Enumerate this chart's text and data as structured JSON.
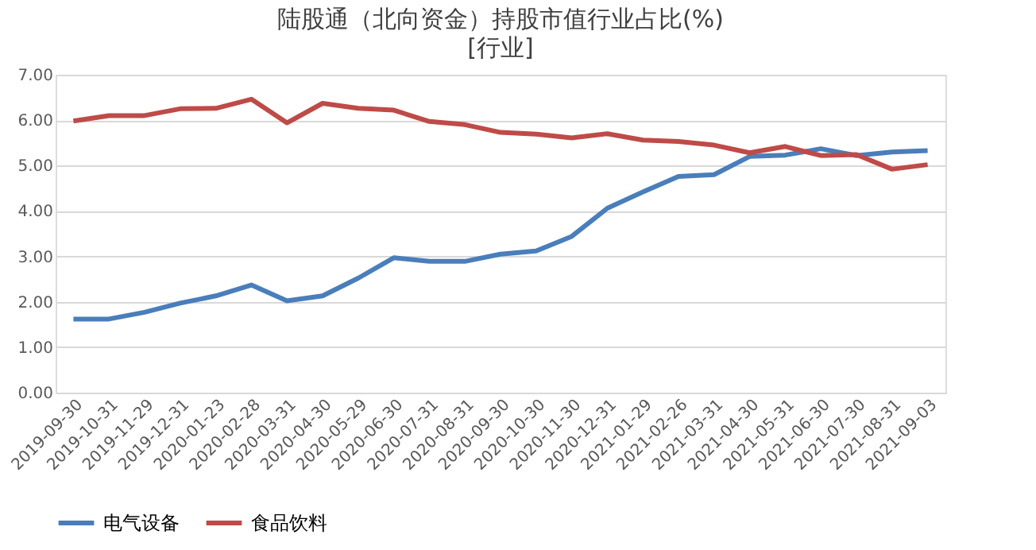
{
  "chart_data": {
    "type": "line",
    "title": "陆股通（北向资金）持股市值行业占比(%)",
    "subtitle": "[行业]",
    "categories": [
      "2019-09-30",
      "2019-10-31",
      "2019-11-29",
      "2019-12-31",
      "2020-01-23",
      "2020-02-28",
      "2020-03-31",
      "2020-04-30",
      "2020-05-29",
      "2020-06-30",
      "2020-07-31",
      "2020-08-31",
      "2020-09-30",
      "2020-10-30",
      "2020-11-30",
      "2020-12-31",
      "2021-01-29",
      "2021-02-26",
      "2021-03-31",
      "2021-04-30",
      "2021-05-31",
      "2021-06-30",
      "2021-07-30",
      "2021-08-31",
      "2021-09-03"
    ],
    "series": [
      {
        "name": "电气设备",
        "color": "#4a7ebb",
        "values": [
          1.62,
          1.62,
          1.77,
          1.97,
          2.13,
          2.37,
          2.02,
          2.13,
          2.52,
          2.97,
          2.89,
          2.89,
          3.05,
          3.12,
          3.44,
          4.06,
          4.42,
          4.76,
          4.8,
          5.2,
          5.23,
          5.37,
          5.22,
          5.3,
          5.33
        ]
      },
      {
        "name": "食品饮料",
        "color": "#be4b48",
        "values": [
          5.98,
          6.1,
          6.1,
          6.25,
          6.26,
          6.46,
          5.94,
          6.37,
          6.26,
          6.22,
          5.97,
          5.9,
          5.73,
          5.69,
          5.61,
          5.7,
          5.56,
          5.53,
          5.45,
          5.28,
          5.42,
          5.22,
          5.24,
          4.92,
          5.02
        ]
      }
    ],
    "ylim": [
      0,
      7
    ],
    "yticks": [
      {
        "value": 0,
        "label": "0.00"
      },
      {
        "value": 1,
        "label": "1.00"
      },
      {
        "value": 2,
        "label": "2.00"
      },
      {
        "value": 3,
        "label": "3.00"
      },
      {
        "value": 4,
        "label": "4.00"
      },
      {
        "value": 5,
        "label": "5.00"
      },
      {
        "value": 6,
        "label": "6.00"
      },
      {
        "value": 7,
        "label": "7.00"
      }
    ],
    "grid": "y",
    "legend": "bottom",
    "marker": "none",
    "line_style": "solid"
  }
}
